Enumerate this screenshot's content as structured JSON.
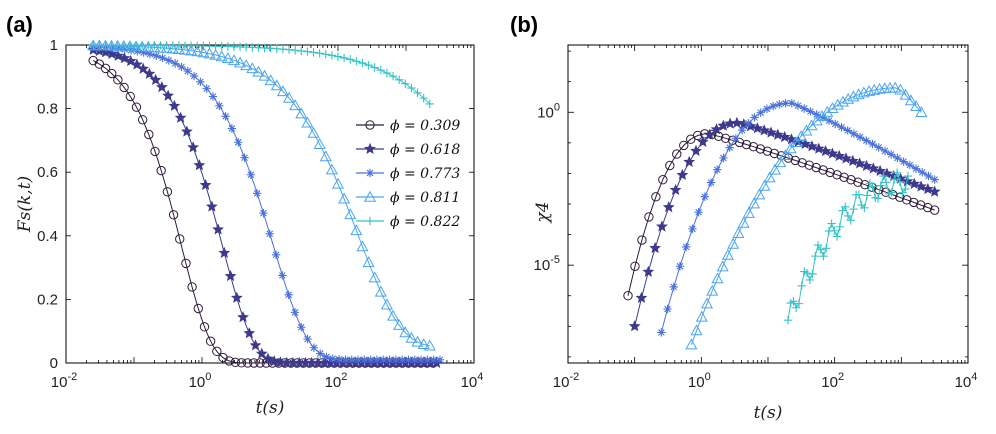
{
  "charts": [
    {
      "panel": "(a)",
      "type": "line",
      "xlabel": "t(s)",
      "ylabel": "Fs(k,t)",
      "xscale": "log",
      "yscale": "linear",
      "xlim": [
        0.01,
        10000
      ],
      "ylim": [
        0,
        1
      ],
      "xticks": [
        {
          "base": "10",
          "exp": "-2",
          "v": 0.01
        },
        {
          "base": "10",
          "exp": "0",
          "v": 1
        },
        {
          "base": "10",
          "exp": "2",
          "v": 100
        },
        {
          "base": "10",
          "exp": "4",
          "v": 10000
        }
      ],
      "yticks": [
        {
          "label": "0",
          "v": 0
        },
        {
          "label": "0.2",
          "v": 0.2
        },
        {
          "label": "0.4",
          "v": 0.4
        },
        {
          "label": "0.6",
          "v": 0.6
        },
        {
          "label": "0.8",
          "v": 0.8
        },
        {
          "label": "1",
          "v": 1
        }
      ],
      "legend": {
        "placement": "right",
        "entries": [
          "ϕ = 0.309",
          "ϕ = 0.618",
          "ϕ = 0.773",
          "ϕ = 0.811",
          "ϕ = 0.822"
        ]
      },
      "series": [
        {
          "name": "ϕ = 0.309",
          "marker": "circle",
          "color": "#2e1a3b",
          "logt_start": -1.6,
          "logt_end": 3.4,
          "tau": 0.5,
          "beta": 1.0,
          "end_value": 0.0
        },
        {
          "name": "ϕ = 0.618",
          "marker": "star",
          "color": "#3d3a8e",
          "logt_start": -1.6,
          "logt_end": 3.45,
          "tau": 2.0,
          "beta": 0.95,
          "end_value": 0.0
        },
        {
          "name": "ϕ = 0.773",
          "marker": "asterisk",
          "color": "#4a72de",
          "logt_start": -1.6,
          "logt_end": 3.5,
          "tau": 11,
          "beta": 0.85,
          "end_value": 0.01
        },
        {
          "name": "ϕ = 0.811",
          "marker": "triangle",
          "color": "#4aa4ee",
          "logt_start": -1.6,
          "logt_end": 3.35,
          "tau": 200,
          "beta": 0.7,
          "end_value": 0.05
        },
        {
          "name": "ϕ = 0.822",
          "marker": "plus",
          "color": "#34c3c7",
          "logt_start": -1.6,
          "logt_end": 3.35,
          "tau": 40000,
          "beta": 0.55,
          "end_value": 0.82
        }
      ]
    },
    {
      "panel": "(b)",
      "type": "line",
      "xlabel": "t(s)",
      "ylabel": "χ4",
      "xscale": "log",
      "yscale": "log",
      "xlim": [
        0.01,
        10000
      ],
      "ylim_log10": [
        -8.2,
        2.2
      ],
      "xticks": [
        {
          "base": "10",
          "exp": "-2",
          "v": 0.01
        },
        {
          "base": "10",
          "exp": "0",
          "v": 1
        },
        {
          "base": "10",
          "exp": "2",
          "v": 100
        },
        {
          "base": "10",
          "exp": "4",
          "v": 10000
        }
      ],
      "yticks": [
        {
          "base": "10",
          "exp": "-5",
          "v": -5
        },
        {
          "base": "10",
          "exp": "0",
          "v": 0
        }
      ],
      "series": [
        {
          "name": "ϕ = 0.309",
          "marker": "circle",
          "color": "#2e1a3b",
          "logt_start": -1.1,
          "logt_end": 3.5,
          "log_peak_t": 0.1,
          "log_peak_chi": -0.7,
          "log_start_chi": -6.0,
          "log_end_chi": -3.2
        },
        {
          "name": "ϕ = 0.618",
          "marker": "star",
          "color": "#3d3a8e",
          "logt_start": -1.0,
          "logt_end": 3.5,
          "log_peak_t": 0.55,
          "log_peak_chi": -0.35,
          "log_start_chi": -7.0,
          "log_end_chi": -2.6
        },
        {
          "name": "ϕ = 0.773",
          "marker": "asterisk",
          "color": "#4a72de",
          "logt_start": -0.6,
          "logt_end": 3.5,
          "log_peak_t": 1.35,
          "log_peak_chi": 0.3,
          "log_start_chi": -7.2,
          "log_end_chi": -2.2
        },
        {
          "name": "ϕ = 0.811",
          "marker": "triangle",
          "color": "#4aa4ee",
          "logt_start": -0.15,
          "logt_end": 3.3,
          "log_peak_t": 2.95,
          "log_peak_chi": 0.8,
          "log_start_chi": -7.6,
          "log_end_chi": 0.0
        },
        {
          "name": "ϕ = 0.822",
          "marker": "plus",
          "color": "#34c3c7",
          "logt_start": 1.3,
          "logt_end": 3.1,
          "log_peak_t": 3.1,
          "log_peak_chi": -2.3,
          "log_start_chi": -6.8,
          "log_end_chi": -2.3
        }
      ]
    }
  ]
}
